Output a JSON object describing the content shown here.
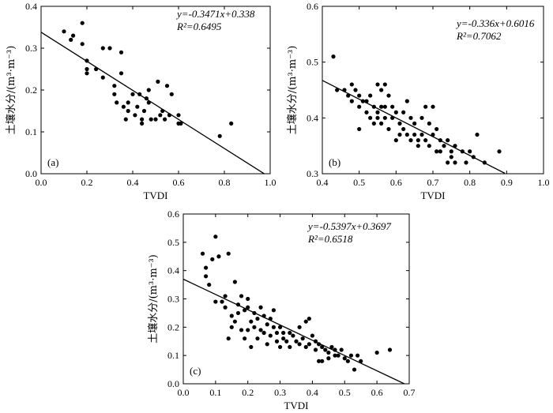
{
  "chart_data": [
    {
      "type": "scatter",
      "panel_label": "(a)",
      "xlabel": "TVDI",
      "ylabel": "土壤水分/(m³·m⁻³)",
      "xlim": [
        0.0,
        1.0
      ],
      "ylim": [
        0.0,
        0.4
      ],
      "xticks": [
        0.0,
        0.2,
        0.4,
        0.6,
        0.8,
        1.0
      ],
      "yticks": [
        0.0,
        0.1,
        0.2,
        0.3,
        0.4
      ],
      "xtick_labels": [
        "0.0",
        "0.2",
        "0.4",
        "0.6",
        "0.8",
        "1.0"
      ],
      "ytick_labels": [
        "0.0",
        "0.1",
        "0.2",
        "0.3",
        "0.4"
      ],
      "equation": "y=-0.3471x+0.338",
      "r2": "R²=0.6495",
      "fit": {
        "slope": -0.3471,
        "intercept": 0.338,
        "x_start": 0.0,
        "x_end": 0.975
      },
      "points": [
        [
          0.1,
          0.34
        ],
        [
          0.13,
          0.32
        ],
        [
          0.14,
          0.33
        ],
        [
          0.18,
          0.36
        ],
        [
          0.18,
          0.31
        ],
        [
          0.2,
          0.27
        ],
        [
          0.2,
          0.25
        ],
        [
          0.2,
          0.24
        ],
        [
          0.24,
          0.25
        ],
        [
          0.27,
          0.3
        ],
        [
          0.27,
          0.23
        ],
        [
          0.3,
          0.3
        ],
        [
          0.32,
          0.21
        ],
        [
          0.32,
          0.19
        ],
        [
          0.33,
          0.17
        ],
        [
          0.35,
          0.29
        ],
        [
          0.35,
          0.24
        ],
        [
          0.36,
          0.16
        ],
        [
          0.37,
          0.13
        ],
        [
          0.38,
          0.17
        ],
        [
          0.38,
          0.15
        ],
        [
          0.4,
          0.19
        ],
        [
          0.41,
          0.14
        ],
        [
          0.42,
          0.16
        ],
        [
          0.43,
          0.19
        ],
        [
          0.44,
          0.13
        ],
        [
          0.44,
          0.12
        ],
        [
          0.45,
          0.15
        ],
        [
          0.46,
          0.18
        ],
        [
          0.47,
          0.17
        ],
        [
          0.47,
          0.2
        ],
        [
          0.48,
          0.13
        ],
        [
          0.5,
          0.13
        ],
        [
          0.51,
          0.22
        ],
        [
          0.52,
          0.14
        ],
        [
          0.53,
          0.15
        ],
        [
          0.54,
          0.13
        ],
        [
          0.55,
          0.21
        ],
        [
          0.56,
          0.14
        ],
        [
          0.57,
          0.19
        ],
        [
          0.6,
          0.14
        ],
        [
          0.6,
          0.12
        ],
        [
          0.61,
          0.12
        ],
        [
          0.78,
          0.09
        ],
        [
          0.83,
          0.12
        ]
      ]
    },
    {
      "type": "scatter",
      "panel_label": "(b)",
      "xlabel": "TVDI",
      "ylabel": "土壤水分/(m³·m⁻³)",
      "xlim": [
        0.4,
        1.0
      ],
      "ylim": [
        0.3,
        0.6
      ],
      "xticks": [
        0.4,
        0.5,
        0.6,
        0.7,
        0.8,
        0.9,
        1.0
      ],
      "yticks": [
        0.3,
        0.4,
        0.5,
        0.6
      ],
      "xtick_labels": [
        "0.4",
        "0.5",
        "0.6",
        "0.7",
        "0.8",
        "0.9",
        "1.0"
      ],
      "ytick_labels": [
        "0.3",
        "0.4",
        "0.5",
        "0.6"
      ],
      "equation": "y=-0.336x+0.6016",
      "r2": "R²=0.7062",
      "fit": {
        "slope": -0.336,
        "intercept": 0.6016,
        "x_start": 0.4,
        "x_end": 0.895
      },
      "points": [
        [
          0.43,
          0.51
        ],
        [
          0.44,
          0.45
        ],
        [
          0.46,
          0.45
        ],
        [
          0.47,
          0.44
        ],
        [
          0.48,
          0.46
        ],
        [
          0.48,
          0.43
        ],
        [
          0.49,
          0.45
        ],
        [
          0.5,
          0.44
        ],
        [
          0.5,
          0.42
        ],
        [
          0.5,
          0.38
        ],
        [
          0.51,
          0.43
        ],
        [
          0.52,
          0.43
        ],
        [
          0.52,
          0.41
        ],
        [
          0.53,
          0.44
        ],
        [
          0.53,
          0.4
        ],
        [
          0.54,
          0.42
        ],
        [
          0.54,
          0.39
        ],
        [
          0.55,
          0.46
        ],
        [
          0.55,
          0.41
        ],
        [
          0.55,
          0.4
        ],
        [
          0.56,
          0.45
        ],
        [
          0.56,
          0.42
        ],
        [
          0.56,
          0.39
        ],
        [
          0.57,
          0.46
        ],
        [
          0.57,
          0.42
        ],
        [
          0.57,
          0.4
        ],
        [
          0.58,
          0.44
        ],
        [
          0.58,
          0.38
        ],
        [
          0.59,
          0.42
        ],
        [
          0.59,
          0.4
        ],
        [
          0.6,
          0.41
        ],
        [
          0.6,
          0.36
        ],
        [
          0.61,
          0.39
        ],
        [
          0.61,
          0.37
        ],
        [
          0.62,
          0.41
        ],
        [
          0.62,
          0.38
        ],
        [
          0.63,
          0.43
        ],
        [
          0.63,
          0.37
        ],
        [
          0.64,
          0.4
        ],
        [
          0.64,
          0.36
        ],
        [
          0.65,
          0.39
        ],
        [
          0.65,
          0.37
        ],
        [
          0.66,
          0.36
        ],
        [
          0.66,
          0.35
        ],
        [
          0.67,
          0.4
        ],
        [
          0.67,
          0.37
        ],
        [
          0.68,
          0.42
        ],
        [
          0.68,
          0.36
        ],
        [
          0.69,
          0.39
        ],
        [
          0.69,
          0.35
        ],
        [
          0.7,
          0.42
        ],
        [
          0.7,
          0.37
        ],
        [
          0.71,
          0.38
        ],
        [
          0.71,
          0.34
        ],
        [
          0.72,
          0.36
        ],
        [
          0.72,
          0.34
        ],
        [
          0.73,
          0.35
        ],
        [
          0.74,
          0.36
        ],
        [
          0.74,
          0.32
        ],
        [
          0.75,
          0.34
        ],
        [
          0.75,
          0.33
        ],
        [
          0.76,
          0.35
        ],
        [
          0.76,
          0.32
        ],
        [
          0.78,
          0.34
        ],
        [
          0.79,
          0.32
        ],
        [
          0.8,
          0.34
        ],
        [
          0.81,
          0.33
        ],
        [
          0.82,
          0.37
        ],
        [
          0.84,
          0.32
        ],
        [
          0.88,
          0.34
        ]
      ]
    },
    {
      "type": "scatter",
      "panel_label": "(c)",
      "xlabel": "TVDI",
      "ylabel": "土壤水分/(m³·m⁻³)",
      "xlim": [
        0.0,
        0.7
      ],
      "ylim": [
        0.0,
        0.6
      ],
      "xticks": [
        0.0,
        0.1,
        0.2,
        0.3,
        0.4,
        0.5,
        0.6,
        0.7
      ],
      "yticks": [
        0.0,
        0.1,
        0.2,
        0.3,
        0.4,
        0.5,
        0.6
      ],
      "xtick_labels": [
        "0.0",
        "0.1",
        "0.2",
        "0.3",
        "0.4",
        "0.5",
        "0.6",
        "0.7"
      ],
      "ytick_labels": [
        "0.0",
        "0.1",
        "0.2",
        "0.3",
        "0.4",
        "0.5",
        "0.6"
      ],
      "equation": "y=-0.5397x+0.3697",
      "r2": "R²=0.6518",
      "fit": {
        "slope": -0.5397,
        "intercept": 0.3697,
        "x_start": 0.0,
        "x_end": 0.685
      },
      "points": [
        [
          0.06,
          0.46
        ],
        [
          0.07,
          0.41
        ],
        [
          0.07,
          0.38
        ],
        [
          0.08,
          0.35
        ],
        [
          0.09,
          0.44
        ],
        [
          0.1,
          0.52
        ],
        [
          0.1,
          0.29
        ],
        [
          0.11,
          0.45
        ],
        [
          0.12,
          0.29
        ],
        [
          0.13,
          0.27
        ],
        [
          0.13,
          0.31
        ],
        [
          0.14,
          0.16
        ],
        [
          0.14,
          0.46
        ],
        [
          0.15,
          0.24
        ],
        [
          0.15,
          0.2
        ],
        [
          0.16,
          0.36
        ],
        [
          0.16,
          0.22
        ],
        [
          0.17,
          0.28
        ],
        [
          0.17,
          0.25
        ],
        [
          0.18,
          0.31
        ],
        [
          0.18,
          0.19
        ],
        [
          0.19,
          0.26
        ],
        [
          0.19,
          0.16
        ],
        [
          0.2,
          0.27
        ],
        [
          0.2,
          0.19
        ],
        [
          0.2,
          0.3
        ],
        [
          0.21,
          0.22
        ],
        [
          0.21,
          0.13
        ],
        [
          0.22,
          0.25
        ],
        [
          0.22,
          0.2
        ],
        [
          0.23,
          0.23
        ],
        [
          0.23,
          0.16
        ],
        [
          0.24,
          0.27
        ],
        [
          0.24,
          0.19
        ],
        [
          0.25,
          0.24
        ],
        [
          0.25,
          0.18
        ],
        [
          0.26,
          0.21
        ],
        [
          0.26,
          0.14
        ],
        [
          0.27,
          0.23
        ],
        [
          0.27,
          0.17
        ],
        [
          0.28,
          0.26
        ],
        [
          0.28,
          0.2
        ],
        [
          0.29,
          0.18
        ],
        [
          0.29,
          0.15
        ],
        [
          0.3,
          0.2
        ],
        [
          0.3,
          0.13
        ],
        [
          0.31,
          0.18
        ],
        [
          0.31,
          0.16
        ],
        [
          0.32,
          0.15
        ],
        [
          0.33,
          0.18
        ],
        [
          0.33,
          0.13
        ],
        [
          0.34,
          0.17
        ],
        [
          0.35,
          0.15
        ],
        [
          0.36,
          0.2
        ],
        [
          0.36,
          0.14
        ],
        [
          0.37,
          0.16
        ],
        [
          0.38,
          0.22
        ],
        [
          0.38,
          0.13
        ],
        [
          0.39,
          0.23
        ],
        [
          0.39,
          0.14
        ],
        [
          0.4,
          0.17
        ],
        [
          0.41,
          0.12
        ],
        [
          0.41,
          0.15
        ],
        [
          0.42,
          0.14
        ],
        [
          0.42,
          0.08
        ],
        [
          0.43,
          0.13
        ],
        [
          0.43,
          0.08
        ],
        [
          0.44,
          0.12
        ],
        [
          0.45,
          0.11
        ],
        [
          0.45,
          0.09
        ],
        [
          0.46,
          0.13
        ],
        [
          0.47,
          0.12
        ],
        [
          0.47,
          0.1
        ],
        [
          0.48,
          0.1
        ],
        [
          0.49,
          0.12
        ],
        [
          0.5,
          0.09
        ],
        [
          0.51,
          0.08
        ],
        [
          0.52,
          0.1
        ],
        [
          0.53,
          0.05
        ],
        [
          0.54,
          0.1
        ],
        [
          0.55,
          0.08
        ],
        [
          0.6,
          0.11
        ],
        [
          0.64,
          0.12
        ]
      ]
    }
  ]
}
